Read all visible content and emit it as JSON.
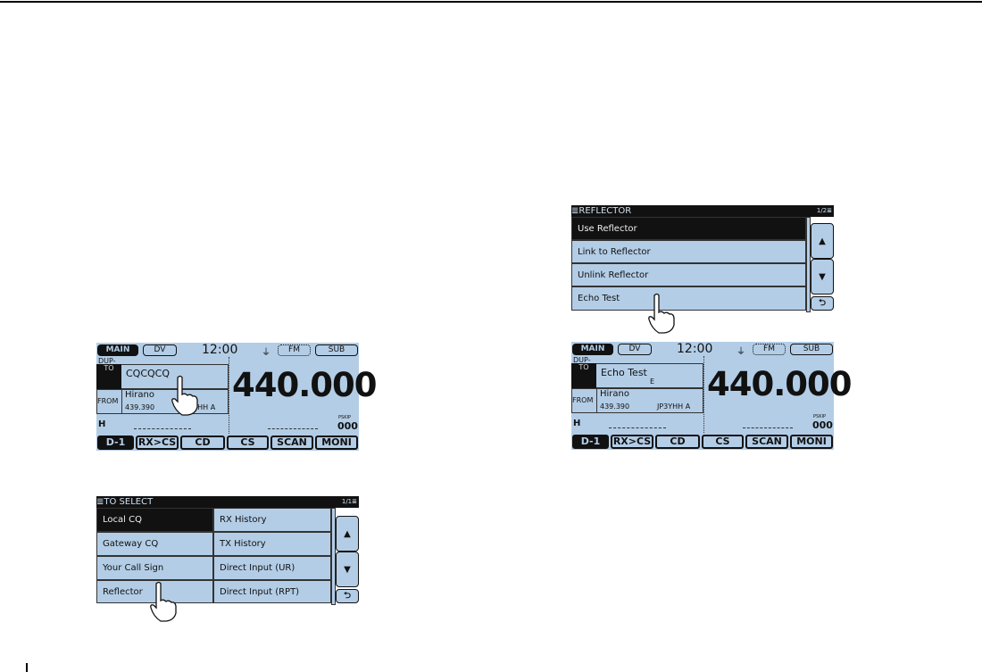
{
  "screen1": {
    "main": "MAIN",
    "mode_dv": "DV",
    "time": "12:00",
    "fm": "FM",
    "sub": "SUB",
    "dup": "DUP-",
    "to_label": "TO",
    "to_value": "CQCQCQ",
    "from_label": "FROM",
    "from_name": "Hirano",
    "from_freq": "439.390",
    "from_call": "JP3YHH  A",
    "freq": "440.000",
    "power": "H",
    "pskip": "PSKIP",
    "mem": "000",
    "buttons": [
      "D-1",
      "RX>CS",
      "CD",
      "CS",
      "SCAN",
      "MONI"
    ]
  },
  "to_select": {
    "title": "≣TO SELECT",
    "page": "1/1≣",
    "items": [
      "Local CQ",
      "RX History",
      "Gateway CQ",
      "TX History",
      "Your Call Sign",
      "Direct Input (UR)",
      "Reflector",
      "Direct Input (RPT)"
    ],
    "up": "▲",
    "down": "▼",
    "back": "⮌"
  },
  "reflector": {
    "title": "≣REFLECTOR",
    "page": "1/2≣",
    "items": [
      "Use Reflector",
      "Link to Reflector",
      "Unlink Reflector",
      "Echo Test"
    ],
    "up": "▲",
    "down": "▼",
    "back": "⮌"
  },
  "screen2": {
    "main": "MAIN",
    "mode_dv": "DV",
    "time": "12:00",
    "fm": "FM",
    "sub": "SUB",
    "dup": "DUP-",
    "to_label": "TO",
    "to_value": "Echo Test",
    "to_sub": "E",
    "from_label": "FROM",
    "from_name": "Hirano",
    "from_freq": "439.390",
    "from_call": "JP3YHH  A",
    "freq": "440.000",
    "power": "H",
    "pskip": "PSKIP",
    "mem": "000",
    "buttons": [
      "D-1",
      "RX>CS",
      "CD",
      "CS",
      "SCAN",
      "MONI"
    ]
  },
  "colors": {
    "screen_bg": "#b3cde6",
    "dark": "#111111"
  }
}
